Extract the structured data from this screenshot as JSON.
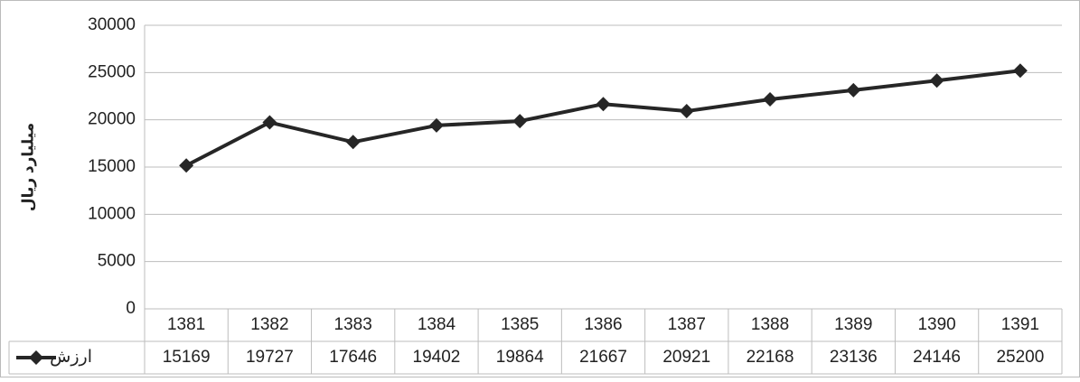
{
  "chart_data": {
    "type": "line",
    "y_label": "میلیارد ریال",
    "categories": [
      "1381",
      "1382",
      "1383",
      "1384",
      "1385",
      "1386",
      "1387",
      "1388",
      "1389",
      "1390",
      "1391"
    ],
    "series": [
      {
        "name": "ارزش",
        "color": "#262626",
        "values": [
          15169,
          19727,
          17646,
          19402,
          19864,
          21667,
          20921,
          22168,
          23136,
          24146,
          25200
        ]
      }
    ],
    "ylim": [
      0,
      30000
    ],
    "yticks": [
      0,
      5000,
      10000,
      15000,
      20000,
      25000,
      30000
    ],
    "grid": true
  }
}
